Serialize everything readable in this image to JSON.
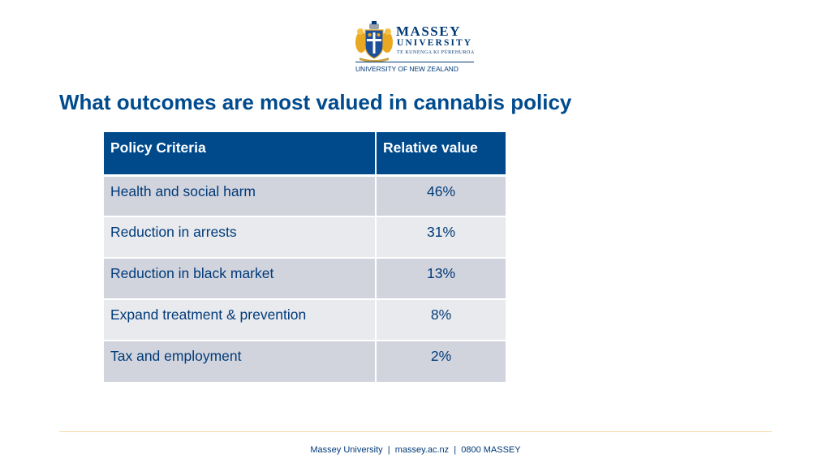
{
  "logo": {
    "name": "MASSEY",
    "sub": "UNIVERSITY",
    "maori": "TE KUNENGA KI PŪREHUROA",
    "country": "UNIVERSITY OF NEW ZEALAND"
  },
  "title": "What outcomes are most valued in cannabis policy",
  "table": {
    "headers": [
      "Policy Criteria",
      "Relative value"
    ],
    "rows": [
      {
        "criteria": "Health and social harm",
        "value": "46%"
      },
      {
        "criteria": "Reduction in arrests",
        "value": "31%"
      },
      {
        "criteria": "Reduction in black market",
        "value": "13%"
      },
      {
        "criteria": "Expand treatment & prevention",
        "value": "8%"
      },
      {
        "criteria": "Tax and employment",
        "value": "2%"
      }
    ]
  },
  "footer": "Massey University  |  massey.ac.nz  |  0800 MASSEY",
  "colors": {
    "brand": "#004a8c",
    "row_dark": "#d2d4dd",
    "row_light": "#e9eaee",
    "footer_rule": "#f2d9a8"
  }
}
